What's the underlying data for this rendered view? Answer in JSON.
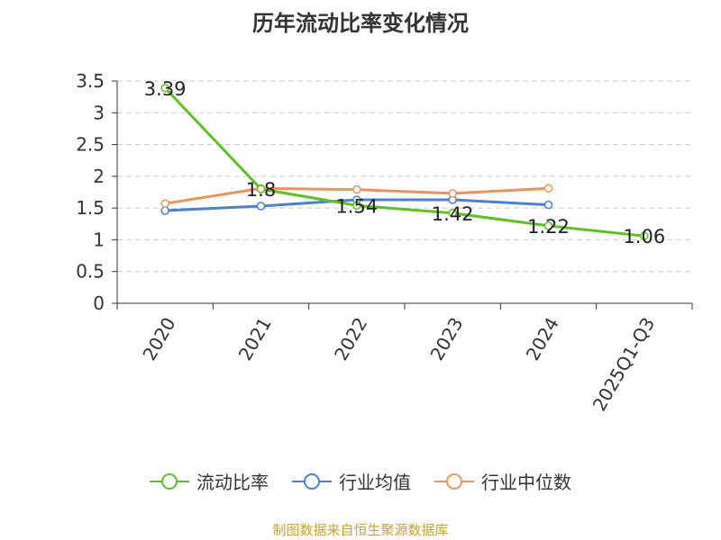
{
  "chart_data": {
    "type": "line",
    "title": "历年流动比率变化情况",
    "categories": [
      "2020",
      "2021",
      "2022",
      "2023",
      "2024",
      "2025Q1-Q3"
    ],
    "ylim": [
      0,
      3.5
    ],
    "yticks": [
      0,
      0.5,
      1,
      1.5,
      2,
      2.5,
      3,
      3.5
    ],
    "ytick_labels": [
      "0",
      "0.5",
      "1",
      "1.5",
      "2",
      "2.5",
      "3",
      "3.5"
    ],
    "grid": true,
    "legend_position": "bottom",
    "series": [
      {
        "name": "流动比率",
        "color": "#5dc21f",
        "values": [
          3.39,
          1.8,
          1.54,
          1.42,
          1.22,
          1.06
        ],
        "labels": [
          "3.39",
          "1.8",
          "1.54",
          "1.42",
          "1.22",
          "1.06"
        ]
      },
      {
        "name": "行业均值",
        "color": "#4a7fdc",
        "values": [
          1.46,
          1.53,
          1.63,
          1.63,
          1.55,
          null
        ]
      },
      {
        "name": "行业中位数",
        "color": "#f4915b",
        "values": [
          1.57,
          1.81,
          1.79,
          1.73,
          1.81,
          null
        ]
      }
    ]
  },
  "source_text": "制图数据来自恒生聚源数据库"
}
